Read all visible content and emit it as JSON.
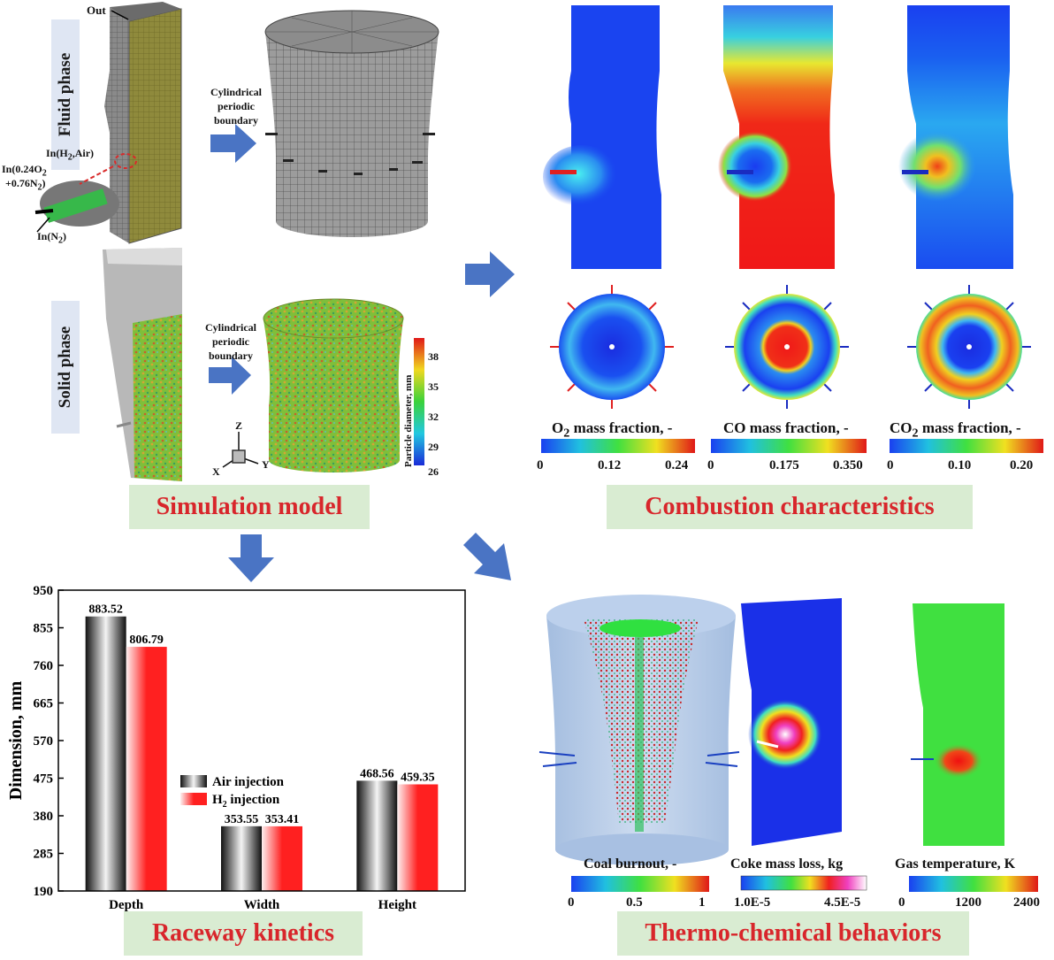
{
  "sections": {
    "simulation_model": "Simulation model",
    "combustion": "Combustion characteristics",
    "raceway": "Raceway kinetics",
    "thermo": "Thermo-chemical behaviors"
  },
  "simulation": {
    "fluid_phase": "Fluid phase",
    "solid_phase": "Solid phase",
    "out_label": "Out",
    "in_h2_air": "In(H",
    "in_h2_air_sub": "2",
    "in_h2_air_tail": ",Air)",
    "in_o2_a": "In(0.24O",
    "in_o2_a_sub": "2",
    "in_o2_b": "+0.76N",
    "in_o2_b_sub": "2",
    "in_o2_b_tail": ")",
    "in_n2": "In(N",
    "in_n2_sub": "2",
    "in_n2_tail": ")",
    "boundary_1a": "Cylindrical",
    "boundary_1b": "periodic",
    "boundary_1c": "boundary",
    "boundary_2a": "Cylindrical",
    "boundary_2b": "periodic",
    "boundary_2c": "boundary",
    "particle_axis": "Particle diameter, mm",
    "particle_ticks": [
      "38",
      "35",
      "32",
      "29",
      "26"
    ],
    "axes": {
      "z": "Z",
      "x": "X",
      "y": "Y"
    }
  },
  "combustion_colorbars": [
    {
      "title_a": "O",
      "sub": "2",
      "title_b": " mass fraction, -",
      "ticks": [
        "0",
        "0.12",
        "0.24"
      ]
    },
    {
      "title_a": "CO mass fraction, -",
      "sub": "",
      "title_b": "",
      "ticks": [
        "0",
        "0.175",
        "0.350"
      ]
    },
    {
      "title_a": "CO",
      "sub": "2",
      "title_b": " mass fraction, -",
      "ticks": [
        "0",
        "0.10",
        "0.20"
      ]
    }
  ],
  "thermo_colorbars": [
    {
      "title": "Coal burnout, -",
      "ticks": [
        "0",
        "0.5",
        "1"
      ]
    },
    {
      "title": "Coke mass loss, kg",
      "ticks": [
        "1.0E-5",
        "4.5E-5"
      ]
    },
    {
      "title": "Gas temperature, K",
      "ticks": [
        "0",
        "1200",
        "2400"
      ]
    }
  ],
  "colors": {
    "label_bg": "#d9ecd2",
    "label_text": "#d8262b",
    "arrow": "#4a74c4",
    "phase_bg": "#dfe6f3"
  },
  "chart_data": {
    "type": "bar",
    "categories": [
      "Depth",
      "Width",
      "Height"
    ],
    "ylabel": "Dimension, mm",
    "ylim": [
      190,
      950
    ],
    "yticks": [
      190,
      285,
      380,
      475,
      570,
      665,
      760,
      855,
      950
    ],
    "series": [
      {
        "name": "Air injection",
        "values": [
          883.52,
          353.55,
          468.56
        ],
        "labels": [
          "883.52",
          "353.55",
          "468.56"
        ]
      },
      {
        "name": "H2 injection",
        "values": [
          806.79,
          353.41,
          459.35
        ],
        "labels": [
          "806.79",
          "353.41",
          "459.35"
        ]
      }
    ],
    "legend": {
      "air": "Air injection",
      "h2_a": "H",
      "h2_sub": "2",
      "h2_b": " injection",
      "position": "center"
    }
  }
}
